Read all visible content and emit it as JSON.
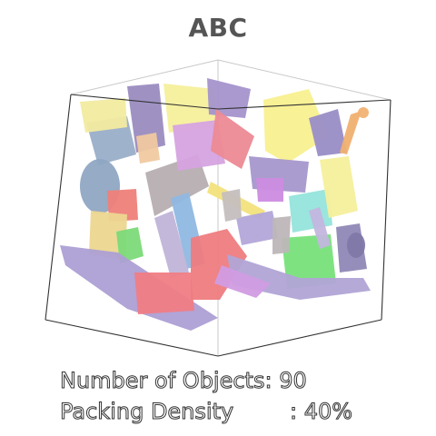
{
  "title": "ABC",
  "stats": {
    "objects_label": "Number of Objects",
    "objects_sep": ": ",
    "objects_value": "90",
    "density_label": "Packing Density",
    "density_sep": ": ",
    "density_value": "40%"
  },
  "colors": {
    "yellow": "#f6ee9a",
    "purple": "#b3a3d4",
    "violet": "#9189b8",
    "pink": "#f17f86",
    "cyan": "#8fe0d8",
    "green": "#7fe07a",
    "steel": "#94acc4",
    "gray": "#b2aaaa",
    "orange": "#f0a47a",
    "tan": "#e9d28e",
    "magenta": "#d59ae0"
  }
}
